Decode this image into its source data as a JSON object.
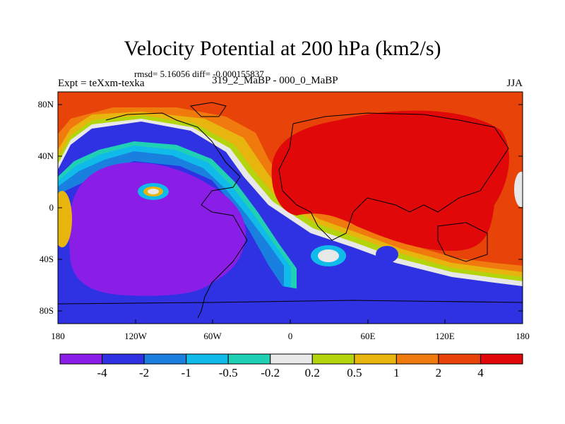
{
  "title": "Velocity Potential at 200 hPa (km2/s)",
  "stats": "rmsd= 5.16056 diff= -0.000155837",
  "experiment": "Expt = teXxm-texka",
  "comparison": "319_2_MaBP - 000_0_MaBP",
  "season": "JJA",
  "lat_labels": [
    "80N",
    "40N",
    "0",
    "40S",
    "80S"
  ],
  "lon_labels": [
    "180",
    "120W",
    "60W",
    "0",
    "60E",
    "120E",
    "180"
  ],
  "colorbar": {
    "labels": [
      "-4",
      "-2",
      "-1",
      "-0.5",
      "-0.2",
      "0.2",
      "0.5",
      "1",
      "2",
      "4"
    ],
    "colors": [
      "#8a1ee6",
      "#2f32e2",
      "#1a80e0",
      "#10bbea",
      "#1fd0b4",
      "#e8e8e8",
      "#b4d40e",
      "#e8b40e",
      "#f07a0e",
      "#e8440a",
      "#e00808"
    ]
  }
}
